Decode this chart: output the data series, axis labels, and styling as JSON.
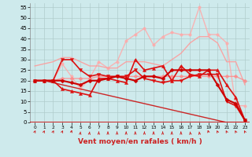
{
  "title": "",
  "xlabel": "Vent moyen/en rafales ( km/h )",
  "ylabel": "",
  "bg_color": "#ceeaec",
  "grid_color": "#b0cccc",
  "x": [
    0,
    1,
    2,
    3,
    4,
    5,
    6,
    7,
    8,
    9,
    10,
    11,
    12,
    13,
    14,
    15,
    16,
    17,
    18,
    19,
    20,
    21,
    22,
    23
  ],
  "ylim": [
    0,
    57
  ],
  "yticks": [
    0,
    5,
    10,
    15,
    20,
    25,
    30,
    35,
    40,
    45,
    50,
    55
  ],
  "lines": [
    {
      "color": "#ffaaaa",
      "alpha": 0.85,
      "lw": 1.0,
      "marker": "o",
      "ms": 2.5,
      "data": [
        20,
        20,
        20,
        28,
        22,
        16,
        21,
        29,
        26,
        29,
        39,
        42,
        45,
        37,
        41,
        43,
        42,
        42,
        55,
        42,
        42,
        38,
        8,
        8
      ]
    },
    {
      "color": "#ff9999",
      "alpha": 0.85,
      "lw": 1.0,
      "marker": null,
      "data": [
        27,
        28,
        29,
        31,
        31,
        29,
        27,
        27,
        26,
        26,
        29,
        29,
        29,
        28,
        27,
        30,
        33,
        38,
        41,
        41,
        38,
        29,
        29,
        18
      ]
    },
    {
      "color": "#ff8888",
      "alpha": 0.8,
      "lw": 1.0,
      "marker": "D",
      "ms": 2.5,
      "data": [
        20,
        20,
        20,
        21,
        21,
        21,
        21,
        22,
        22,
        22,
        22,
        22,
        22,
        22,
        22,
        22,
        22,
        22,
        22,
        22,
        22,
        22,
        22,
        20
      ]
    },
    {
      "color": "#dd1111",
      "alpha": 1.0,
      "lw": 1.2,
      "marker": "^",
      "ms": 3,
      "data": [
        20,
        20,
        20,
        16,
        15,
        14,
        13,
        21,
        21,
        20,
        19,
        30,
        25,
        26,
        27,
        20,
        27,
        23,
        22,
        25,
        25,
        18,
        12,
        1
      ]
    },
    {
      "color": "#dd1111",
      "alpha": 1.0,
      "lw": 1.2,
      "marker": "v",
      "ms": 3,
      "data": [
        20,
        20,
        20,
        30,
        30,
        25,
        22,
        23,
        22,
        22,
        22,
        25,
        21,
        20,
        19,
        20,
        20,
        22,
        23,
        23,
        23,
        10,
        8,
        1
      ]
    },
    {
      "color": "#cc0000",
      "alpha": 1.0,
      "lw": 1.5,
      "marker": "D",
      "ms": 2.5,
      "data": [
        20,
        20,
        20,
        20,
        19,
        18,
        20,
        20,
        21,
        22,
        21,
        20,
        22,
        22,
        21,
        25,
        25,
        25,
        25,
        25,
        18,
        11,
        9,
        1
      ]
    },
    {
      "color": "#cc1111",
      "alpha": 0.9,
      "lw": 1.0,
      "marker": null,
      "data": [
        20,
        20,
        19,
        18,
        17,
        16,
        15,
        14,
        13,
        12,
        11,
        10,
        9,
        8,
        7,
        6,
        5,
        4,
        3,
        2,
        1,
        0,
        0,
        0
      ]
    }
  ],
  "arrows": {
    "angles_deg": [
      45,
      45,
      45,
      45,
      30,
      15,
      15,
      0,
      0,
      0,
      0,
      0,
      0,
      0,
      0,
      0,
      0,
      345,
      345,
      330,
      315,
      315,
      315,
      315
    ]
  }
}
